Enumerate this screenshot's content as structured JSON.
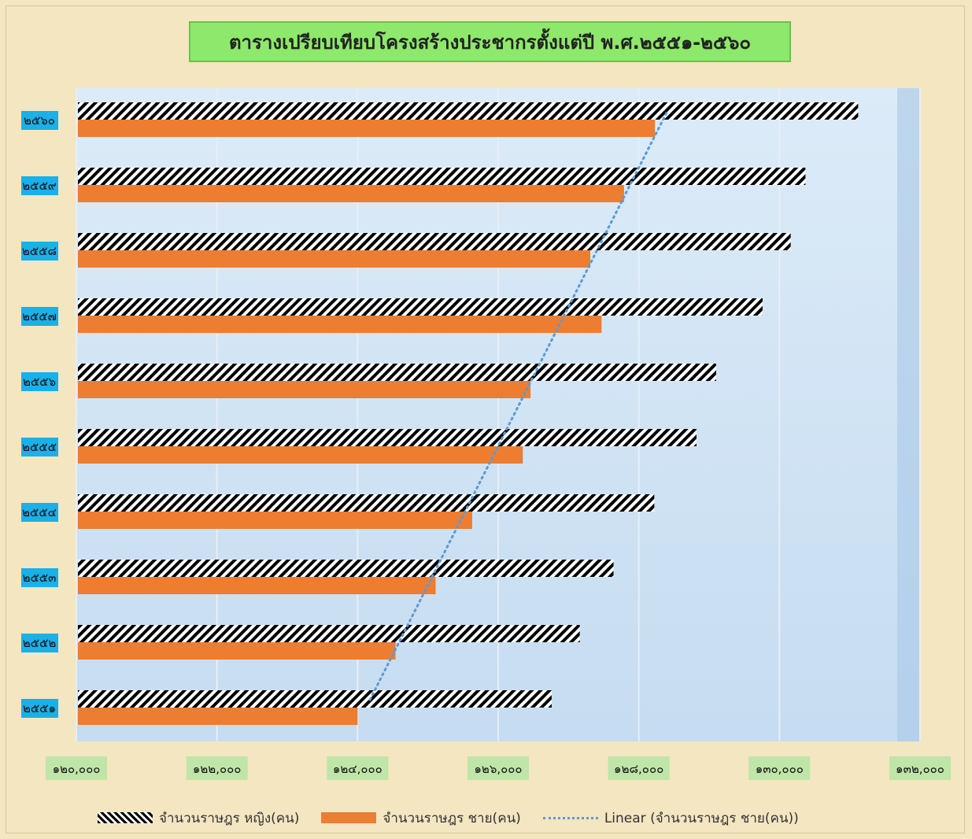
{
  "chart_data": {
    "type": "bar",
    "orientation": "horizontal",
    "title": "ตารางเปรียบเทียบโครงสร้างประชากรตั้งแต่ปี พ.ศ.๒๕๕๑-๒๕๖๐",
    "categories": [
      "๒๕๕๑",
      "๒๕๕๒",
      "๒๕๕๓",
      "๒๕๕๔",
      "๒๕๕๕",
      "๒๕๕๖",
      "๒๕๕๗",
      "๒๕๕๘",
      "๒๕๕๙",
      "๒๕๖๐"
    ],
    "series": [
      {
        "name": "จำนวนราษฎร หญิง(คน)",
        "color": "#000000",
        "pattern": "diagonal-stripes",
        "values": [
          126760,
          127160,
          127640,
          128220,
          128820,
          129100,
          129760,
          130160,
          130370,
          131120
        ]
      },
      {
        "name": "จำนวนราษฎร ชาย(คน)",
        "color": "#ed7d31",
        "values": [
          124000,
          124540,
          125110,
          125630,
          126350,
          126460,
          127470,
          127310,
          127790,
          128230
        ]
      }
    ],
    "trendline": {
      "name": "Linear (จำนวนราษฎร ชาย(คน))",
      "color": "#5b9bd5",
      "style": "dotted",
      "series": "จำนวนราษฎร ชาย(คน)"
    },
    "xlim": [
      120000,
      132000
    ],
    "xticks": [
      120000,
      122000,
      124000,
      126000,
      128000,
      130000,
      132000
    ],
    "xtick_labels": [
      "๑๒๐,๐๐๐",
      "๑๒๒,๐๐๐",
      "๑๒๔,๐๐๐",
      "๑๒๖,๐๐๐",
      "๑๒๘,๐๐๐",
      "๑๓๐,๐๐๐",
      "๑๓๒,๐๐๐"
    ],
    "grid": true,
    "legend_position": "bottom"
  }
}
